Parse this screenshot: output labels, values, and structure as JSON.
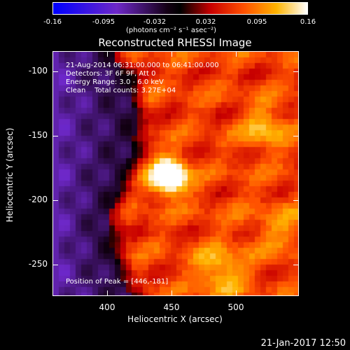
{
  "colorbar": {
    "ticks": [
      "-0.16",
      "-0.095",
      "-0.032",
      "0.032",
      "0.095",
      "0.16"
    ],
    "units": "(photons cm⁻² s⁻¹ asec⁻²)"
  },
  "title": "Reconstructed RHESSI Image",
  "info": {
    "time": "21-Aug-2014 06:31:00.000 to 06:41:00.000",
    "detectors": "Detectors: 3F 6F 9F, Att 0",
    "energy": "Energy Range: 3.0 - 6.0 keV",
    "clean": "Clean    Total counts: 3.27E+04",
    "peak": "Position of Peak = [446,-181]"
  },
  "axes": {
    "xlabel": "Heliocentric X (arcsec)",
    "ylabel": "Heliocentric Y (arcsec)",
    "xticks": [
      "400",
      "450",
      "500"
    ],
    "yticks": [
      "-100",
      "-150",
      "-200",
      "-250"
    ],
    "xrange": [
      350,
      550
    ],
    "yrange": [
      -275,
      -75
    ]
  },
  "timestamp": "21-Jan-2017 12:50",
  "colors": {
    "low": "#0000ff",
    "mid": "#000000",
    "high": "#ffffff"
  }
}
